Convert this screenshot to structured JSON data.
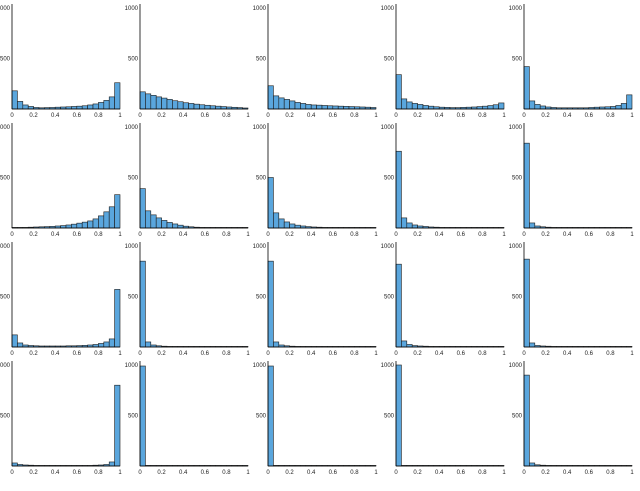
{
  "chart_data": {
    "type": "bar",
    "layout": "4x5 grid of histograms",
    "bins": 20,
    "xlim": [
      0,
      1
    ],
    "ylim": [
      0,
      1000
    ],
    "x_ticks": [
      "0",
      "0.2",
      "0.4",
      "0.6",
      "0.8",
      "1"
    ],
    "y_ticks": [
      "500",
      "1000"
    ],
    "bar_color": "#5aa6dd",
    "edge_color": "#1b1b1b",
    "panels": [
      {
        "values": [
          180,
          75,
          40,
          25,
          15,
          12,
          14,
          15,
          18,
          20,
          22,
          25,
          28,
          32,
          40,
          50,
          65,
          85,
          120,
          260
        ]
      },
      {
        "values": [
          170,
          150,
          135,
          120,
          108,
          95,
          82,
          72,
          62,
          55,
          48,
          42,
          37,
          32,
          28,
          24,
          20,
          17,
          14,
          10
        ]
      },
      {
        "values": [
          230,
          130,
          110,
          95,
          80,
          65,
          55,
          45,
          40,
          38,
          35,
          32,
          30,
          28,
          26,
          24,
          22,
          20,
          18,
          15
        ]
      },
      {
        "values": [
          340,
          100,
          70,
          55,
          45,
          35,
          28,
          22,
          18,
          16,
          14,
          14,
          16,
          18,
          20,
          24,
          28,
          34,
          42,
          60
        ]
      },
      {
        "values": [
          420,
          80,
          45,
          30,
          20,
          15,
          12,
          12,
          12,
          12,
          12,
          12,
          15,
          18,
          20,
          22,
          25,
          35,
          55,
          140
        ]
      },
      {
        "values": [
          5,
          5,
          6,
          8,
          10,
          12,
          14,
          16,
          20,
          24,
          30,
          38,
          48,
          58,
          70,
          90,
          120,
          160,
          210,
          330
        ]
      },
      {
        "values": [
          390,
          170,
          130,
          100,
          75,
          55,
          40,
          28,
          18,
          12,
          8,
          6,
          5,
          4,
          3,
          3,
          2,
          2,
          2,
          2
        ]
      },
      {
        "values": [
          500,
          150,
          90,
          60,
          40,
          28,
          20,
          14,
          10,
          8,
          6,
          5,
          4,
          3,
          3,
          2,
          2,
          2,
          2,
          2
        ]
      },
      {
        "values": [
          760,
          100,
          50,
          30,
          20,
          15,
          10,
          8,
          6,
          5,
          5,
          4,
          4,
          3,
          3,
          3,
          3,
          3,
          3,
          3
        ]
      },
      {
        "values": [
          840,
          50,
          20,
          12,
          8,
          6,
          5,
          4,
          4,
          3,
          3,
          3,
          3,
          3,
          3,
          3,
          3,
          3,
          3,
          3
        ]
      },
      {
        "values": [
          120,
          40,
          20,
          15,
          12,
          10,
          10,
          10,
          10,
          10,
          12,
          12,
          14,
          16,
          20,
          25,
          35,
          50,
          80,
          570
        ]
      },
      {
        "values": [
          850,
          50,
          20,
          12,
          8,
          6,
          5,
          4,
          4,
          3,
          3,
          3,
          3,
          3,
          3,
          3,
          3,
          3,
          3,
          5
        ]
      },
      {
        "values": [
          850,
          50,
          20,
          12,
          8,
          6,
          5,
          4,
          4,
          3,
          3,
          3,
          3,
          3,
          3,
          3,
          3,
          3,
          3,
          3
        ]
      },
      {
        "values": [
          820,
          60,
          25,
          14,
          10,
          8,
          6,
          5,
          4,
          4,
          3,
          3,
          3,
          3,
          3,
          3,
          3,
          3,
          3,
          3
        ]
      },
      {
        "values": [
          870,
          40,
          15,
          10,
          8,
          6,
          5,
          4,
          4,
          3,
          3,
          3,
          3,
          3,
          3,
          3,
          3,
          3,
          3,
          3
        ]
      },
      {
        "values": [
          30,
          15,
          10,
          8,
          6,
          5,
          5,
          5,
          5,
          5,
          5,
          5,
          5,
          5,
          5,
          8,
          10,
          15,
          40,
          800
        ]
      },
      {
        "values": [
          990,
          5,
          2,
          1,
          1,
          1,
          1,
          1,
          1,
          1,
          1,
          1,
          1,
          1,
          1,
          1,
          1,
          1,
          1,
          1
        ]
      },
      {
        "values": [
          990,
          5,
          2,
          1,
          1,
          1,
          1,
          1,
          1,
          1,
          1,
          1,
          1,
          1,
          1,
          1,
          1,
          1,
          1,
          1
        ]
      },
      {
        "values": [
          1000,
          3,
          1,
          1,
          1,
          1,
          1,
          1,
          1,
          1,
          1,
          1,
          1,
          1,
          1,
          1,
          1,
          1,
          1,
          1
        ]
      },
      {
        "values": [
          900,
          30,
          12,
          8,
          6,
          5,
          4,
          4,
          3,
          3,
          3,
          3,
          3,
          3,
          3,
          3,
          3,
          3,
          3,
          3
        ]
      }
    ]
  }
}
